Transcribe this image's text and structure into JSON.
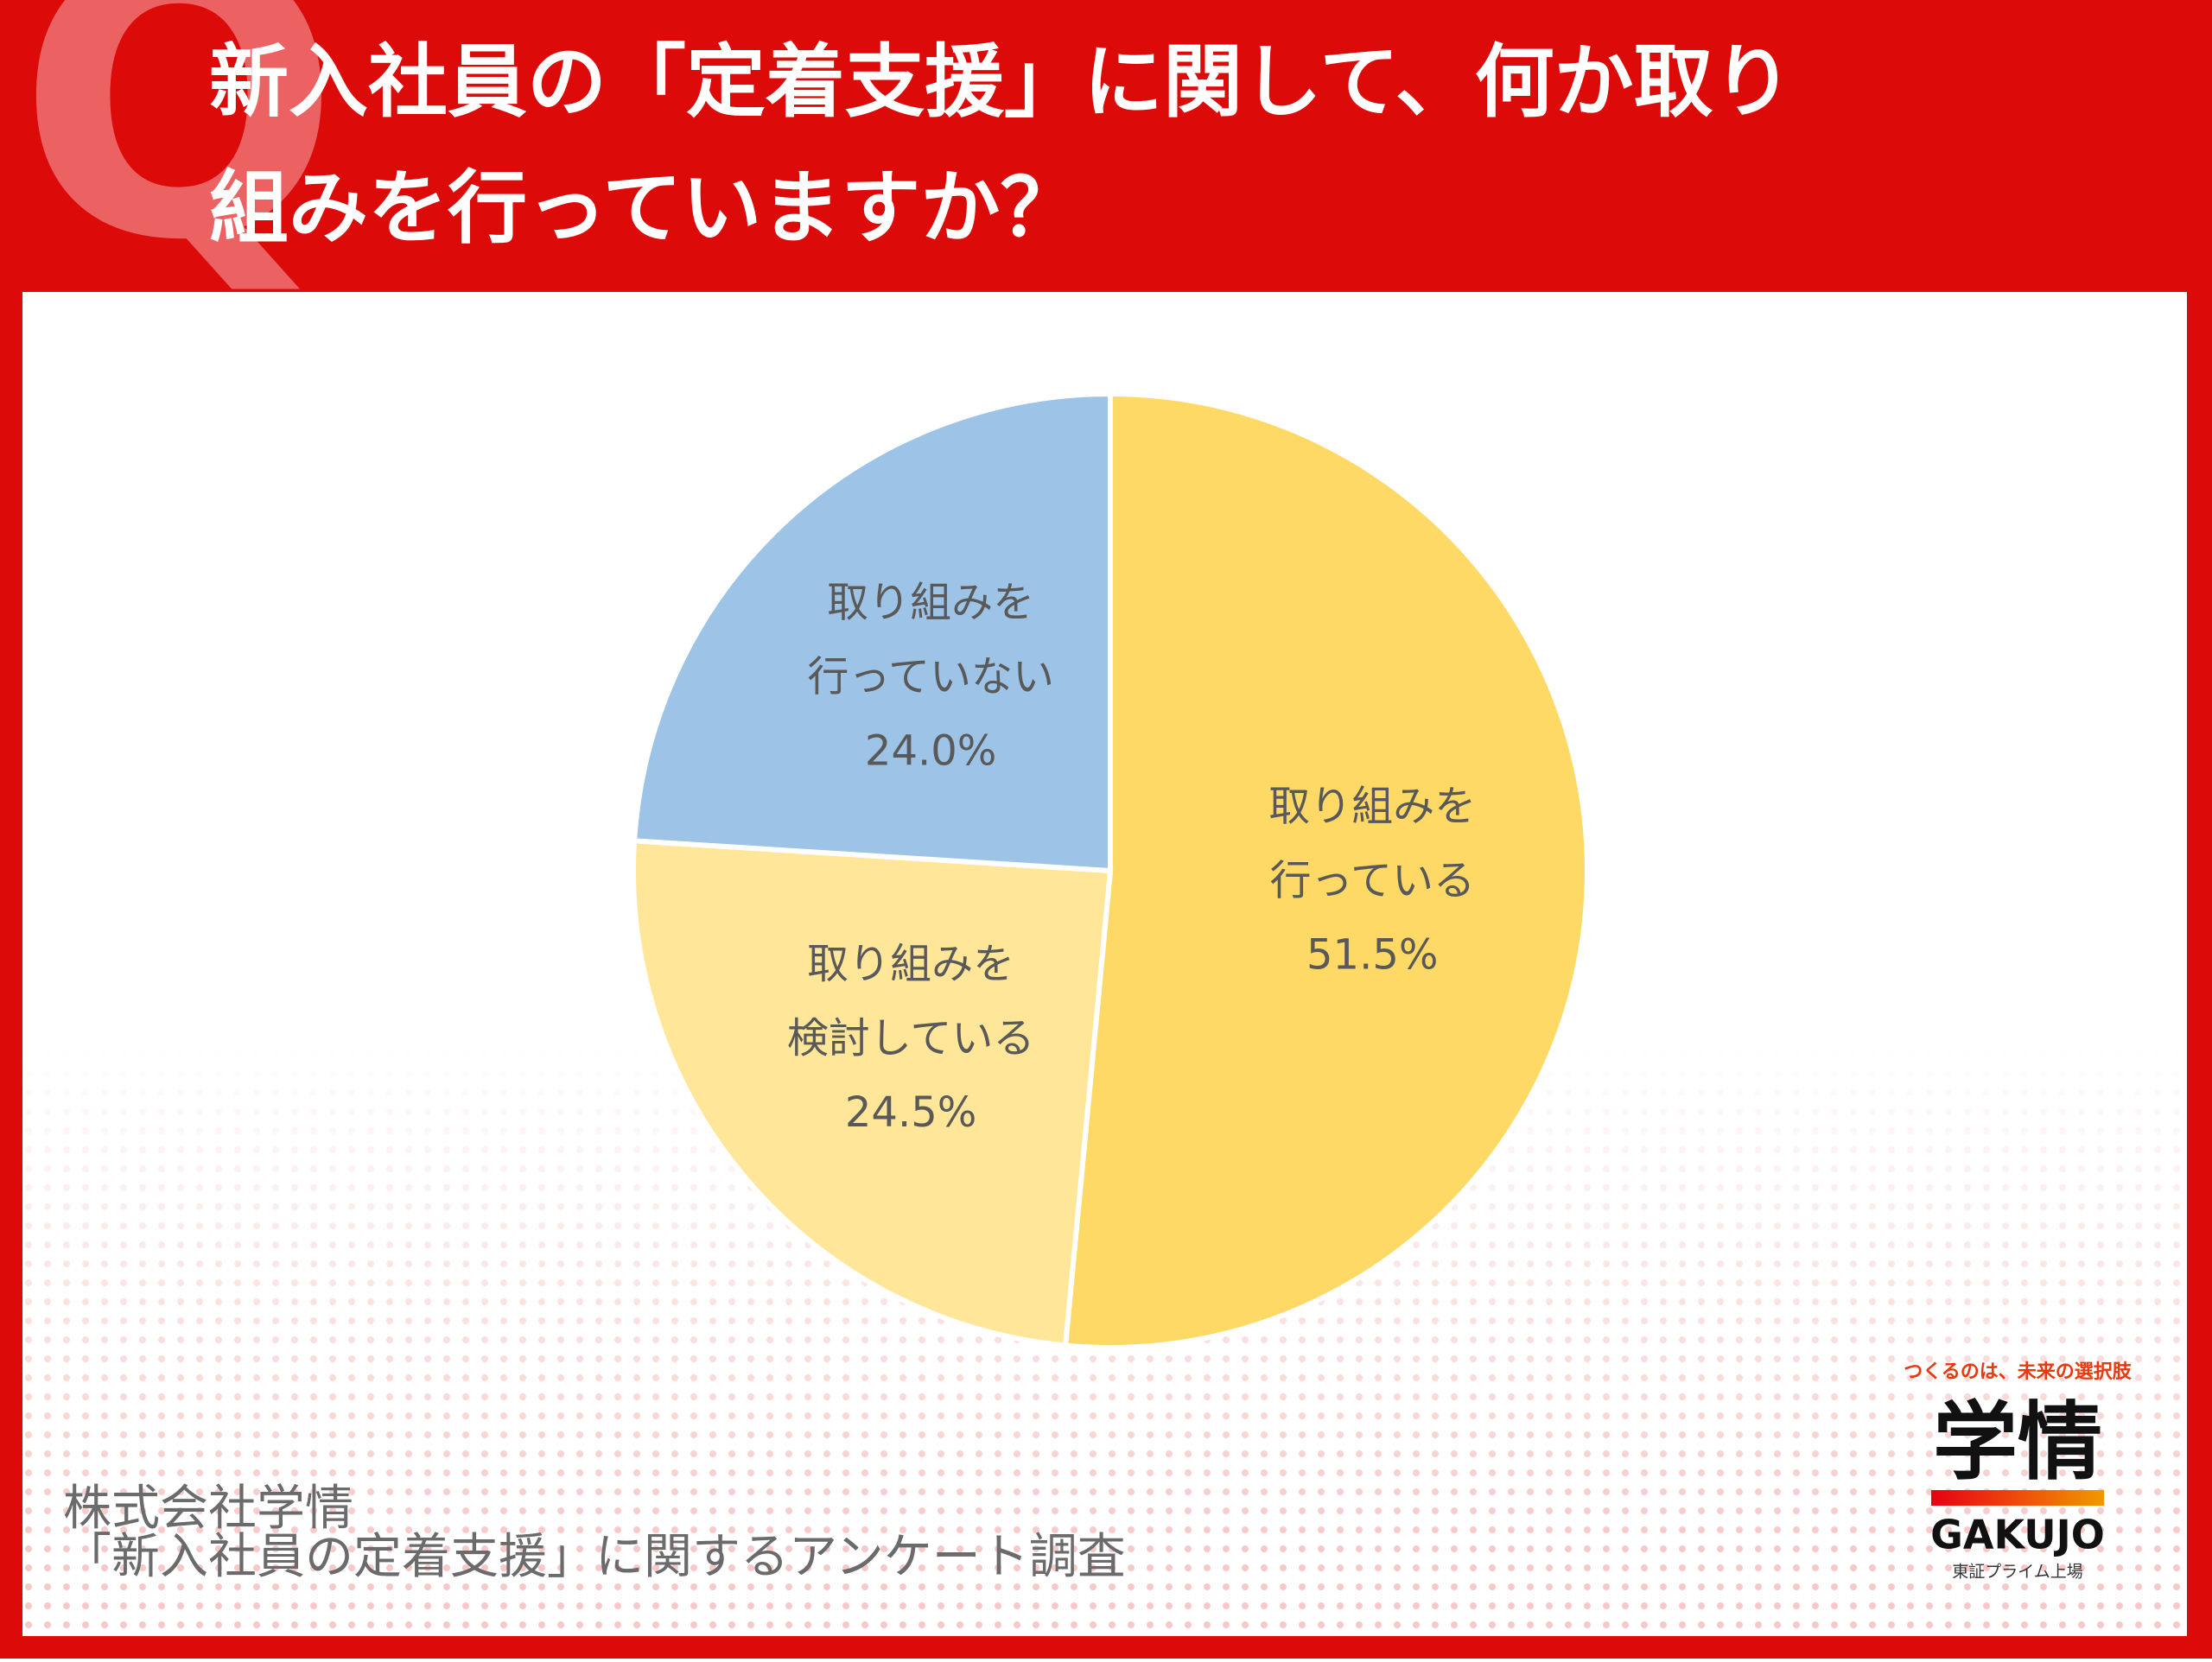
{
  "q_mark": "Q",
  "chart_data": {
    "type": "pie",
    "title": [
      "新入社員の「定着支援」に関して、何か取り",
      "組みを行っていますか？"
    ],
    "categories": [
      [
        "取り組みを",
        "行っている"
      ],
      [
        "取り組みを",
        "検討している"
      ],
      [
        "取り組みを",
        "行っていない"
      ]
    ],
    "values": [
      51.5,
      24.5,
      24.0
    ],
    "value_labels": [
      "51.5%",
      "24.5%",
      "24.0%"
    ],
    "colors": [
      "#ffd966",
      "#ffe699",
      "#9dc3e6"
    ]
  },
  "source": [
    "株式会社学情",
    "「新入社員の定着支援」に関するアンケート調査"
  ],
  "logo": {
    "tagline": "つくるのは、未来の選択肢",
    "name": "学情",
    "roman": "GAKUJO",
    "listing": "東証プライム上場"
  }
}
